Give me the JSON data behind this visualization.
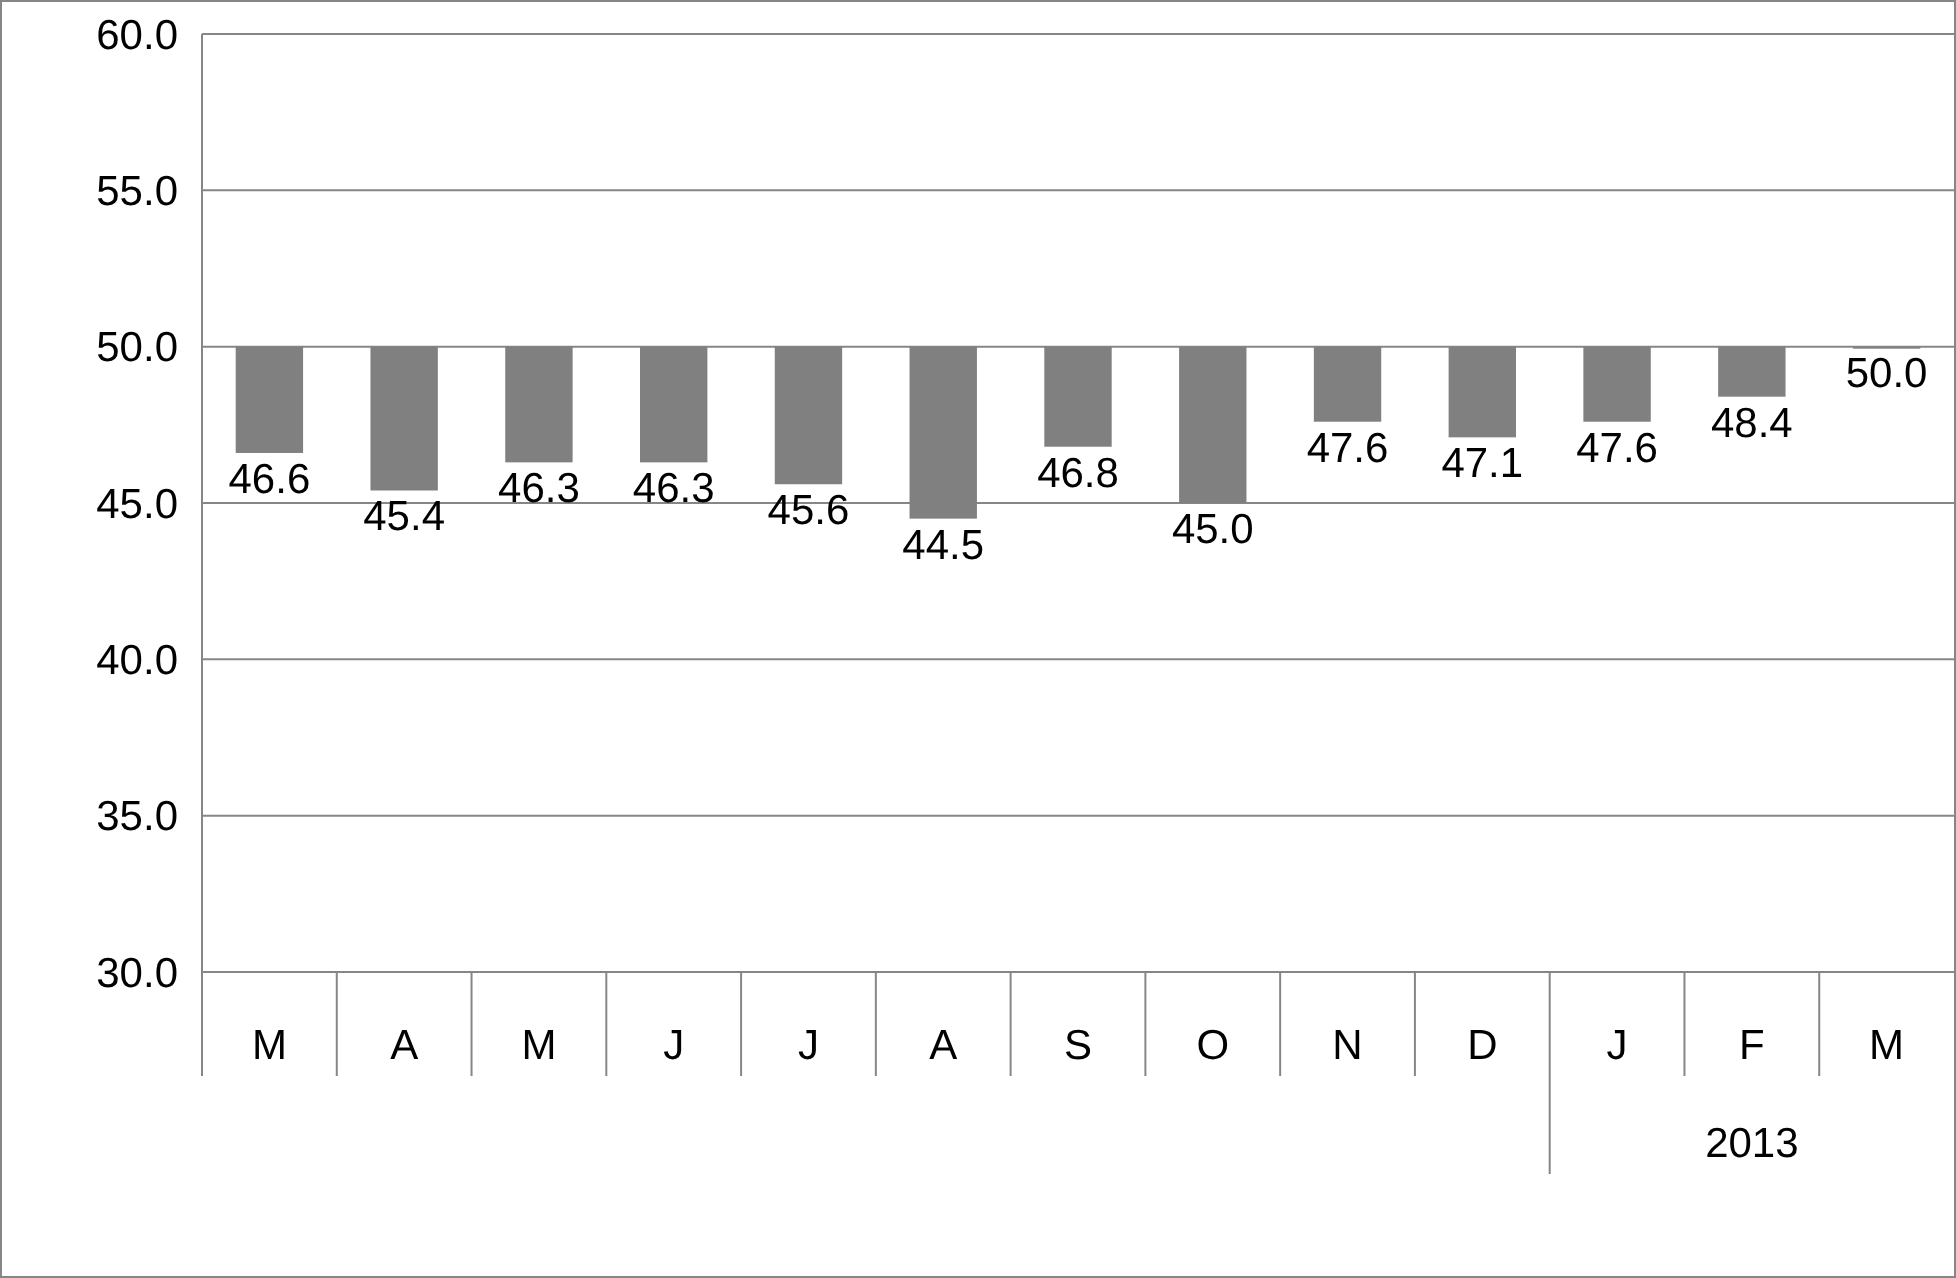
{
  "chart_data": {
    "type": "bar",
    "categories": [
      "M",
      "A",
      "M",
      "J",
      "J",
      "A",
      "S",
      "O",
      "N",
      "D",
      "J",
      "F",
      "M"
    ],
    "base": [
      50,
      50,
      50,
      50,
      50,
      50,
      50,
      50,
      50,
      50,
      50,
      50,
      50
    ],
    "values": [
      -3.4,
      -4.6,
      -3.7,
      -3.7,
      -4.4,
      -5.5,
      -3.2,
      -5.0,
      -2.4,
      -2.9,
      -2.4,
      -1.6,
      0
    ],
    "value_labels": [
      "46.6",
      "45.4",
      "46.3",
      "46.3",
      "45.6",
      "44.5",
      "46.8",
      "45.0",
      "47.6",
      "47.1",
      "47.6",
      "48.4",
      "50.0"
    ],
    "color": "#808080",
    "ylim": [
      30,
      60
    ],
    "yticks": [
      {
        "value": 30,
        "label": "30.0"
      },
      {
        "value": 35,
        "label": "35.0"
      },
      {
        "value": 40,
        "label": "40.0"
      },
      {
        "value": 45,
        "label": "45.0"
      },
      {
        "value": 50,
        "label": "50.0"
      },
      {
        "value": 55,
        "label": "55.0"
      },
      {
        "value": 60,
        "label": "60.0"
      }
    ],
    "grid": "y",
    "annotations": [
      "2013"
    ]
  }
}
